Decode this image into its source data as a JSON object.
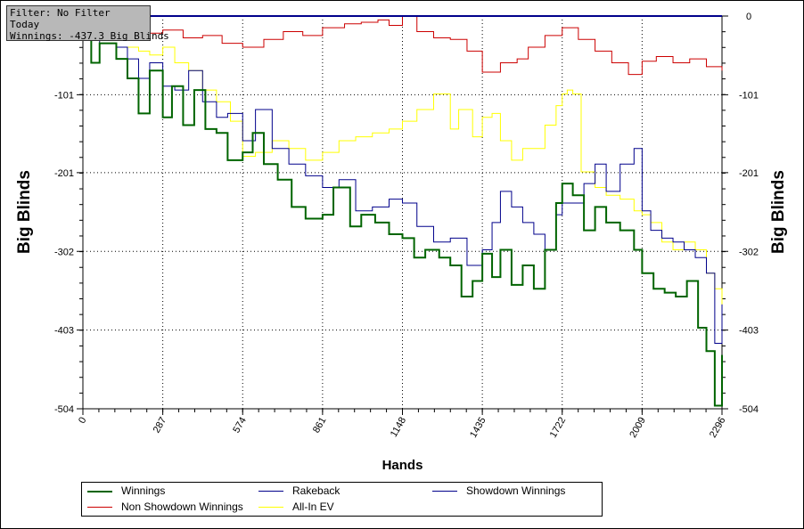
{
  "info_box": {
    "filter": "Filter: No Filter",
    "period": "Today",
    "winnings": "Winnings: -437.3 Big Blinds"
  },
  "legend": [
    {
      "name": "Winnings",
      "color": "#006400"
    },
    {
      "name": "Rakeback",
      "color": "#00008b"
    },
    {
      "name": "Showdown Winnings",
      "color": "#00008b"
    },
    {
      "name": "Non Showdown Winnings",
      "color": "#cc0000"
    },
    {
      "name": "All-In EV",
      "color": "#ffff00"
    }
  ],
  "chart_data": {
    "type": "line",
    "xlabel": "Hands",
    "ylabel_left": "Big Blinds",
    "ylabel_right": "Big Blinds",
    "x_ticks": [
      "0",
      "287",
      "574",
      "861",
      "1148",
      "1435",
      "1722",
      "2009",
      "2296"
    ],
    "y_ticks": [
      "0",
      "-101",
      "-201",
      "-302",
      "-403",
      "-504"
    ],
    "xlim": [
      0,
      2296
    ],
    "ylim": [
      -504,
      0
    ],
    "grid": true,
    "legend_position": "bottom",
    "series": [
      {
        "name": "Non Showdown Winnings",
        "color": "#cc0000",
        "x": [
          0,
          60,
          120,
          200,
          287,
          360,
          430,
          500,
          574,
          650,
          720,
          790,
          861,
          940,
          1000,
          1060,
          1100,
          1148,
          1200,
          1260,
          1320,
          1380,
          1435,
          1500,
          1560,
          1600,
          1660,
          1722,
          1780,
          1840,
          1900,
          1960,
          2009,
          2060,
          2120,
          2180,
          2240,
          2296
        ],
        "y": [
          -10,
          -8,
          -12,
          -22,
          -18,
          -28,
          -25,
          -35,
          -40,
          -30,
          -20,
          -25,
          -15,
          -10,
          -8,
          -5,
          -12,
          0,
          -20,
          -28,
          -30,
          -45,
          -72,
          -60,
          -55,
          -40,
          -25,
          -15,
          -30,
          -45,
          -60,
          -75,
          -58,
          -52,
          -60,
          -55,
          -65,
          -70
        ]
      },
      {
        "name": "All-In EV",
        "color": "#ffff00",
        "x": [
          0,
          60,
          120,
          200,
          240,
          287,
          330,
          380,
          430,
          480,
          530,
          574,
          620,
          680,
          740,
          800,
          861,
          920,
          980,
          1040,
          1100,
          1148,
          1200,
          1260,
          1320,
          1350,
          1400,
          1435,
          1470,
          1500,
          1540,
          1580,
          1620,
          1660,
          1700,
          1722,
          1740,
          1760,
          1790,
          1840,
          1880,
          1930,
          1980,
          2009,
          2040,
          2080,
          2120,
          2160,
          2200,
          2240,
          2270,
          2296
        ],
        "y": [
          -30,
          -35,
          -40,
          -45,
          -50,
          -40,
          -60,
          -70,
          -95,
          -110,
          -135,
          -180,
          -175,
          -160,
          -170,
          -185,
          -175,
          -160,
          -155,
          -150,
          -145,
          -135,
          -120,
          -100,
          -145,
          -120,
          -155,
          -130,
          -125,
          -160,
          -185,
          -170,
          -170,
          -140,
          -115,
          -100,
          -95,
          -100,
          -200,
          -220,
          -230,
          -235,
          -250,
          -255,
          -265,
          -290,
          -300,
          -290,
          -300,
          -330,
          -350,
          -380
        ]
      },
      {
        "name": "Rakeback",
        "color": "#00008b",
        "x": [
          0,
          2296
        ],
        "y": [
          0,
          0
        ]
      },
      {
        "name": "Showdown Winnings",
        "color": "#00008b",
        "x": [
          0,
          60,
          120,
          160,
          200,
          240,
          287,
          330,
          380,
          430,
          480,
          520,
          574,
          620,
          680,
          740,
          800,
          861,
          920,
          980,
          1040,
          1100,
          1148,
          1200,
          1260,
          1320,
          1380,
          1435,
          1470,
          1500,
          1540,
          1580,
          1620,
          1660,
          1700,
          1722,
          1760,
          1800,
          1840,
          1880,
          1930,
          1980,
          2009,
          2040,
          2080,
          2120,
          2160,
          2200,
          2240,
          2270,
          2296
        ],
        "y": [
          -20,
          -35,
          -40,
          -55,
          -80,
          -60,
          -90,
          -95,
          -70,
          -110,
          -130,
          -125,
          -160,
          -120,
          -170,
          -190,
          -205,
          -220,
          -210,
          -250,
          -245,
          -235,
          -240,
          -270,
          -290,
          -285,
          -320,
          -300,
          -265,
          -225,
          -245,
          -265,
          -280,
          -300,
          -255,
          -240,
          -240,
          -215,
          -190,
          -225,
          -190,
          -170,
          -250,
          -275,
          -285,
          -290,
          -300,
          -310,
          -330,
          -420,
          -370
        ]
      },
      {
        "name": "Winnings",
        "color": "#006400",
        "x": [
          0,
          30,
          60,
          120,
          160,
          200,
          240,
          287,
          320,
          360,
          400,
          440,
          480,
          520,
          574,
          610,
          650,
          700,
          750,
          800,
          861,
          900,
          960,
          1000,
          1050,
          1100,
          1148,
          1190,
          1230,
          1280,
          1320,
          1360,
          1400,
          1435,
          1470,
          1500,
          1540,
          1580,
          1620,
          1660,
          1700,
          1722,
          1760,
          1800,
          1840,
          1880,
          1930,
          1980,
          2009,
          2050,
          2090,
          2130,
          2170,
          2210,
          2240,
          2270,
          2296
        ],
        "y": [
          -20,
          -60,
          -35,
          -55,
          -80,
          -125,
          -70,
          -130,
          -90,
          -140,
          -95,
          -145,
          -150,
          -185,
          -175,
          -150,
          -190,
          -210,
          -245,
          -260,
          -255,
          -220,
          -270,
          -255,
          -265,
          -280,
          -285,
          -310,
          -300,
          -310,
          -320,
          -360,
          -340,
          -305,
          -335,
          -300,
          -345,
          -320,
          -350,
          -300,
          -240,
          -215,
          -230,
          -275,
          -245,
          -265,
          -275,
          -300,
          -330,
          -350,
          -355,
          -360,
          -340,
          -400,
          -430,
          -500,
          -435
        ]
      }
    ]
  }
}
